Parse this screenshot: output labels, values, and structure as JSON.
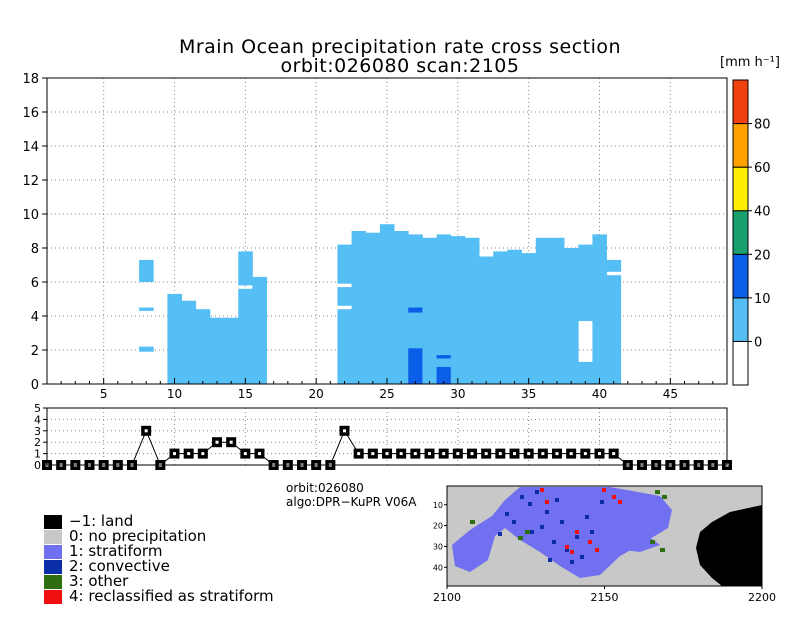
{
  "title_line1": "Mrain Ocean precipitation rate cross section",
  "title_line2": "orbit:026080    scan:2105",
  "unit_label": "[mm h⁻¹]",
  "info_orbit": "orbit:026080",
  "info_algo": "algo:DPR−KuPR V06A",
  "colors": {
    "rain_light": "#55bff5",
    "rain_medium": "#0a5ee8",
    "land": "#000000",
    "no_precip": "#c8c8c8",
    "stratiform": "#7070f0",
    "convective": "#0a2ea8",
    "other": "#2e6e10",
    "reclassified": "#f01010"
  },
  "colorbar": {
    "ticks": [
      "0",
      "10",
      "20",
      "40",
      "60",
      "80"
    ],
    "bins": [
      {
        "label": "0",
        "color": "#ffffff"
      },
      {
        "label": "10",
        "color": "#55bff5"
      },
      {
        "label": "20",
        "color": "#0a5ee8"
      },
      {
        "label": "40",
        "color": "#1aa06e"
      },
      {
        "label": "60",
        "color": "#ffee00"
      },
      {
        "label": "80",
        "color": "#ffa200"
      },
      {
        "label": "max",
        "color": "#f04010"
      }
    ]
  },
  "legend": [
    {
      "label": "−1: land",
      "color": "#000000"
    },
    {
      "label": "0: no precipitation",
      "color": "#c8c8c8"
    },
    {
      "label": "1: stratiform",
      "color": "#7070f0"
    },
    {
      "label": "2: convective",
      "color": "#0a2ea8"
    },
    {
      "label": "3: other",
      "color": "#2e6e10"
    },
    {
      "label": "4: reclassified as stratiform",
      "color": "#f01010"
    }
  ],
  "chart_data": [
    {
      "type": "heatmap",
      "title": "Mrain Ocean precipitation rate cross section",
      "xlim": [
        1,
        49
      ],
      "ylim": [
        0,
        18
      ],
      "x_ticks": [
        5,
        10,
        15,
        20,
        25,
        30,
        35,
        40,
        45
      ],
      "y_ticks": [
        0,
        2,
        4,
        6,
        8,
        10,
        12,
        14,
        16,
        18
      ],
      "grid": true,
      "columns": [
        {
          "x": 8,
          "segments": [
            [
              1.9,
              2.2
            ],
            [
              4.3,
              4.5
            ],
            [
              6.0,
              7.3
            ]
          ]
        },
        {
          "x": 10,
          "segments": [
            [
              0,
              5.3
            ]
          ]
        },
        {
          "x": 11,
          "segments": [
            [
              0,
              4.9
            ]
          ]
        },
        {
          "x": 12,
          "segments": [
            [
              0,
              4.4
            ]
          ]
        },
        {
          "x": 13,
          "segments": [
            [
              0,
              3.9
            ]
          ]
        },
        {
          "x": 14,
          "segments": [
            [
              0,
              3.9
            ]
          ]
        },
        {
          "x": 15,
          "segments": [
            [
              0,
              5.6
            ],
            [
              5.8,
              7.8
            ]
          ]
        },
        {
          "x": 16,
          "segments": [
            [
              0,
              6.3
            ]
          ]
        },
        {
          "x": 22,
          "segments": [
            [
              0,
              4.4
            ],
            [
              4.6,
              5.7
            ],
            [
              5.9,
              8.2
            ]
          ]
        },
        {
          "x": 23,
          "segments": [
            [
              0,
              9.0
            ]
          ]
        },
        {
          "x": 24,
          "segments": [
            [
              0,
              8.9
            ]
          ]
        },
        {
          "x": 25,
          "segments": [
            [
              0,
              9.4
            ]
          ]
        },
        {
          "x": 26,
          "segments": [
            [
              0,
              9.0
            ]
          ]
        },
        {
          "x": 27,
          "segments": [
            [
              0,
              8.8
            ]
          ]
        },
        {
          "x": 28,
          "segments": [
            [
              0,
              8.6
            ]
          ]
        },
        {
          "x": 29,
          "segments": [
            [
              0,
              8.8
            ]
          ]
        },
        {
          "x": 30,
          "segments": [
            [
              0,
              8.7
            ]
          ]
        },
        {
          "x": 31,
          "segments": [
            [
              0,
              8.6
            ]
          ]
        },
        {
          "x": 32,
          "segments": [
            [
              0,
              7.5
            ]
          ]
        },
        {
          "x": 33,
          "segments": [
            [
              0,
              7.8
            ]
          ]
        },
        {
          "x": 34,
          "segments": [
            [
              0,
              7.9
            ]
          ]
        },
        {
          "x": 35,
          "segments": [
            [
              0,
              7.7
            ]
          ]
        },
        {
          "x": 36,
          "segments": [
            [
              0,
              8.6
            ]
          ]
        },
        {
          "x": 37,
          "segments": [
            [
              0,
              8.6
            ]
          ]
        },
        {
          "x": 38,
          "segments": [
            [
              0,
              8.0
            ]
          ]
        },
        {
          "x": 39,
          "segments": [
            [
              0,
              1.3
            ],
            [
              3.7,
              8.2
            ]
          ]
        },
        {
          "x": 40,
          "segments": [
            [
              0,
              8.8
            ]
          ]
        },
        {
          "x": 41,
          "segments": [
            [
              0,
              6.4
            ],
            [
              6.6,
              7.3
            ]
          ]
        }
      ],
      "convective_cells": [
        {
          "x": 27,
          "segments": [
            [
              0,
              2.1
            ],
            [
              4.2,
              4.5
            ]
          ]
        },
        {
          "x": 29,
          "segments": [
            [
              0,
              1.0
            ],
            [
              1.5,
              1.7
            ]
          ]
        }
      ],
      "surface_layer_x": [
        [
          9.5,
          16.5
        ],
        [
          22.5,
          41.5
        ]
      ]
    },
    {
      "type": "line",
      "xlim": [
        1,
        49
      ],
      "ylim": [
        0,
        5
      ],
      "y_ticks": [
        0,
        1,
        2,
        3,
        4,
        5
      ],
      "grid": true,
      "x": [
        1,
        2,
        3,
        4,
        5,
        6,
        7,
        8,
        9,
        10,
        11,
        12,
        13,
        14,
        15,
        16,
        17,
        18,
        19,
        20,
        21,
        22,
        23,
        24,
        25,
        26,
        27,
        28,
        29,
        30,
        31,
        32,
        33,
        34,
        35,
        36,
        37,
        38,
        39,
        40,
        41,
        42,
        43,
        44,
        45,
        46,
        47,
        48,
        49
      ],
      "values": [
        0,
        0,
        0,
        0,
        0,
        0,
        0,
        3,
        0,
        1,
        1,
        1,
        2,
        2,
        1,
        1,
        0,
        0,
        0,
        0,
        0,
        3,
        1,
        1,
        1,
        1,
        1,
        1,
        1,
        1,
        1,
        1,
        1,
        1,
        1,
        1,
        1,
        1,
        1,
        1,
        1,
        0,
        0,
        0,
        0,
        0,
        0,
        0,
        0
      ]
    },
    {
      "type": "heatmap",
      "x_ticks": [
        2100,
        2150,
        2200
      ],
      "y_ticks": [
        10,
        20,
        30,
        40
      ],
      "xlim": [
        2100,
        2200
      ],
      "ylim": [
        49,
        1
      ]
    }
  ]
}
